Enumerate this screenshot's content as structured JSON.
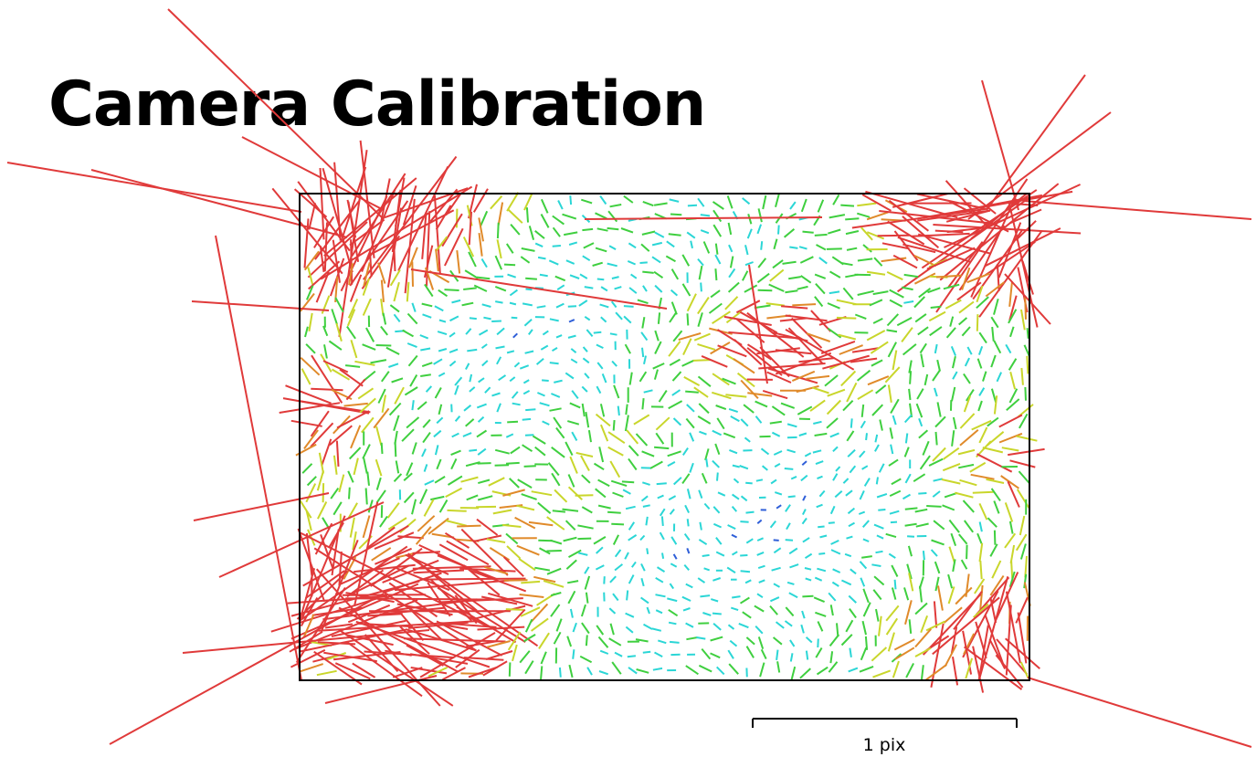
{
  "title": "Camera Calibration",
  "scale_bar": {
    "label": "1 pix",
    "length_pix": 1
  },
  "residual_map": {
    "description_type": "distortion residual vectors over sensor frame",
    "colors": {
      "low": "#2f5fd8",
      "low_mid": "#2bd6d6",
      "mid": "#3fcf3f",
      "mid_high": "#c9d62b",
      "high": "#e08a2a",
      "max": "#e03a3a"
    }
  }
}
